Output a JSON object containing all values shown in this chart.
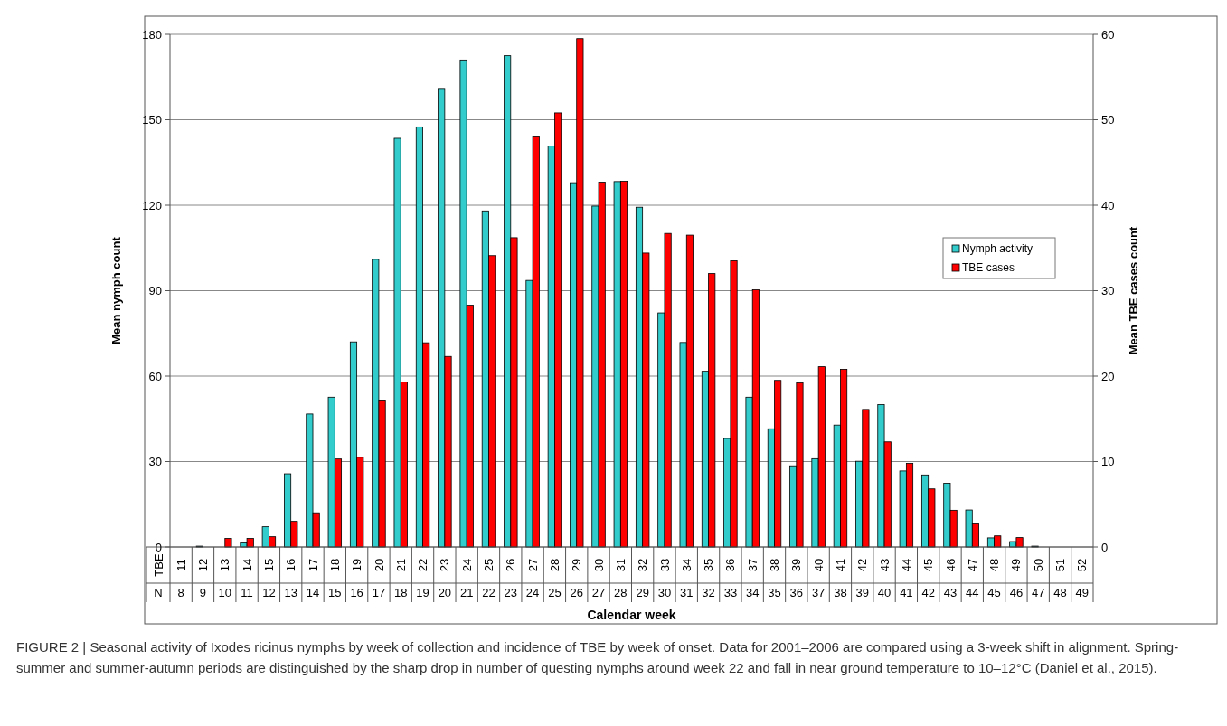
{
  "chart_data": {
    "type": "bar",
    "xlabel": "Calendar week",
    "ylabel": "Mean nymph count",
    "y2label": "Mean TBE cases count",
    "categories": [
      "11\n8",
      "12\n9",
      "13\n10",
      "14\n11",
      "15\n12",
      "16\n13",
      "17\n14",
      "18\n15",
      "19\n16",
      "20\n17",
      "21\n18",
      "22\n19",
      "23\n20",
      "24\n21",
      "25\n22",
      "26\n23",
      "27\n24",
      "28\n25",
      "29\n26",
      "30\n27",
      "31\n28",
      "32\n29",
      "33\n30",
      "34\n31",
      "35\n32",
      "36\n33",
      "37\n34",
      "38\n35",
      "39\n36",
      "40\n37",
      "41\n38",
      "42\n39",
      "43\n40",
      "44\n41",
      "45\n42",
      "46\n43",
      "47\n44",
      "48\n45",
      "49\n46",
      "50\n47",
      "51\n48",
      "52\n49"
    ],
    "series": [
      {
        "name": "Nymph activity",
        "color": "#33cccc",
        "values": [
          0,
          0.3,
          0,
          1.4,
          7.1,
          25.7,
          46.7,
          52.6,
          72,
          101,
          143.5,
          147.5,
          161,
          171,
          118,
          172.5,
          93.6,
          140.8,
          127.9,
          119.7,
          128.3,
          119.3,
          82.2,
          71.8,
          61.7,
          38.1,
          52.6,
          41.5,
          28.5,
          31,
          42.8,
          30.1,
          50,
          26.7,
          25.3,
          22.4,
          13,
          3.2,
          1.9,
          0.3,
          null,
          0
        ]
      },
      {
        "name": "TBE cases",
        "color": "#ff0000",
        "axis": "y2",
        "values": [
          0,
          null,
          1,
          1,
          1.2,
          3,
          4,
          10.3,
          10.5,
          17.2,
          19.3,
          23.9,
          22.3,
          28.3,
          34.1,
          36.2,
          48.1,
          50.8,
          59.5,
          42.7,
          42.8,
          34.4,
          36.7,
          36.5,
          32,
          33.5,
          30.1,
          19.5,
          19.2,
          21.1,
          20.8,
          16.1,
          12.3,
          9.8,
          6.8,
          4.3,
          2.7,
          1.3,
          1.1,
          null,
          null,
          0
        ]
      }
    ],
    "ylim": [
      0,
      180
    ],
    "yticks": [
      0,
      30,
      60,
      90,
      120,
      150,
      180
    ],
    "y2lim": [
      0,
      60
    ],
    "y2ticks": [
      0,
      10,
      20,
      30,
      40,
      50,
      60
    ],
    "grid": "y",
    "legend": "right",
    "annotations": [
      "TBE",
      "N",
      "FIGURE 2 | Seasonal activity of Ixodes ricinus nymphs by week of collection and incidence of TBE by week of onset. Data for 2001–2006 are compared using a 3-week shift in alignment. Spring-summer and summer-autumn periods are distinguished by the sharp drop in number of questing nymphs around week 22 and fall in near ground temperature to 10–12°C (Daniel et al., 2015)."
    ]
  }
}
